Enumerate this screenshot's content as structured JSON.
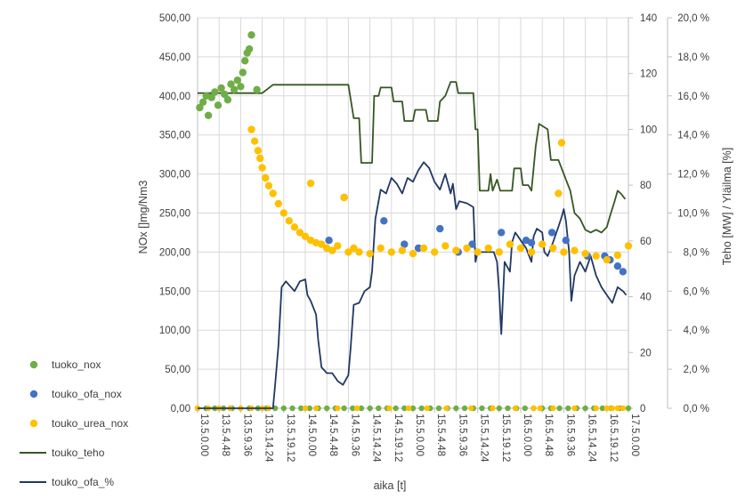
{
  "chart_data": {
    "type": "line",
    "xlabel": "aika [t]",
    "ylabel_left": "NOx []mg/Nm3",
    "ylabel_right": "Teho [MW] / Yläilma [%]",
    "y_left": {
      "min": 0,
      "max": 500,
      "ticks": [
        "0,00",
        "50,00",
        "100,00",
        "150,00",
        "200,00",
        "250,00",
        "300,00",
        "350,00",
        "400,00",
        "450,00",
        "500,00"
      ]
    },
    "y_right1": {
      "min": 0,
      "max": 140,
      "ticks": [
        "0",
        "20",
        "40",
        "60",
        "80",
        "100",
        "120",
        "140"
      ]
    },
    "y_right2": {
      "min": 0,
      "max": 20,
      "ticks": [
        "0,0 %",
        "2,0 %",
        "4,0 %",
        "6,0 %",
        "8,0 %",
        "10,0 %",
        "12,0 %",
        "14,0 %",
        "16,0 %",
        "18,0 %",
        "20,0 %"
      ]
    },
    "x_range_hours": [
      13.5,
      17.5
    ],
    "x_tick_labels": [
      "13.5.0.00",
      "13.5.4.48",
      "13.5.9.36",
      "13.5.14.24",
      "13.5.19.12",
      "14.5.0.00",
      "14.5.4.48",
      "14.5.9.36",
      "14.5.14.24",
      "14.5.19.12",
      "15.5.0.00",
      "15.5.4.48",
      "15.5.9.36",
      "15.5.14.24",
      "15.5.19.12",
      "16.5.0.00",
      "16.5.4.48",
      "16.5.9.36",
      "16.5.14.24",
      "16.5.19.12",
      "17.5.0.00"
    ],
    "grid": true,
    "legend_position": "left",
    "series": [
      {
        "name": "tuoko_nox",
        "type": "scatter",
        "axis": "left",
        "color": "#70ad47",
        "points": [
          [
            13.52,
            385
          ],
          [
            13.55,
            392
          ],
          [
            13.58,
            400
          ],
          [
            13.6,
            375
          ],
          [
            13.63,
            398
          ],
          [
            13.66,
            405
          ],
          [
            13.69,
            388
          ],
          [
            13.72,
            410
          ],
          [
            13.75,
            402
          ],
          [
            13.78,
            395
          ],
          [
            13.81,
            415
          ],
          [
            13.84,
            408
          ],
          [
            13.87,
            420
          ],
          [
            13.9,
            412
          ],
          [
            13.92,
            430
          ],
          [
            13.94,
            445
          ],
          [
            13.96,
            455
          ],
          [
            13.98,
            460
          ],
          [
            14.0,
            478
          ],
          [
            14.05,
            408
          ]
        ]
      },
      {
        "name": "touko_ofa_nox",
        "type": "scatter",
        "axis": "left",
        "color": "#4472c4",
        "points": [
          [
            14.72,
            215
          ],
          [
            14.86,
            270
          ],
          [
            15.23,
            240
          ],
          [
            15.42,
            210
          ],
          [
            15.55,
            205
          ],
          [
            15.75,
            230
          ],
          [
            15.92,
            200
          ],
          [
            16.05,
            210
          ],
          [
            16.32,
            225
          ],
          [
            16.55,
            215
          ],
          [
            16.6,
            212
          ],
          [
            16.79,
            225
          ],
          [
            16.92,
            215
          ],
          [
            17.12,
            195
          ],
          [
            17.28,
            195
          ],
          [
            17.33,
            190
          ],
          [
            17.4,
            182
          ],
          [
            17.45,
            175
          ]
        ]
      },
      {
        "name": "touko_urea_nox",
        "type": "scatter",
        "axis": "left",
        "color": "#ffc000",
        "points": [
          [
            14.0,
            357
          ],
          [
            14.03,
            342
          ],
          [
            14.06,
            330
          ],
          [
            14.08,
            320
          ],
          [
            14.1,
            308
          ],
          [
            14.13,
            295
          ],
          [
            14.16,
            285
          ],
          [
            14.2,
            275
          ],
          [
            14.25,
            262
          ],
          [
            14.3,
            250
          ],
          [
            14.35,
            240
          ],
          [
            14.4,
            232
          ],
          [
            14.45,
            225
          ],
          [
            14.5,
            220
          ],
          [
            14.55,
            215
          ],
          [
            14.6,
            212
          ],
          [
            14.65,
            210
          ],
          [
            14.7,
            205
          ],
          [
            14.75,
            202
          ],
          [
            14.8,
            208
          ],
          [
            14.86,
            270
          ],
          [
            14.9,
            200
          ],
          [
            14.95,
            205
          ],
          [
            15.0,
            200
          ],
          [
            15.1,
            198
          ],
          [
            15.2,
            205
          ],
          [
            15.3,
            200
          ],
          [
            15.4,
            202
          ],
          [
            15.5,
            198
          ],
          [
            15.6,
            205
          ],
          [
            15.7,
            200
          ],
          [
            15.8,
            208
          ],
          [
            15.9,
            202
          ],
          [
            16.0,
            205
          ],
          [
            16.1,
            200
          ],
          [
            16.2,
            205
          ],
          [
            16.3,
            200
          ],
          [
            16.4,
            210
          ],
          [
            16.5,
            205
          ],
          [
            16.6,
            200
          ],
          [
            16.7,
            210
          ],
          [
            16.8,
            205
          ],
          [
            16.9,
            200
          ],
          [
            17.0,
            202
          ],
          [
            17.1,
            198
          ],
          [
            17.2,
            195
          ],
          [
            17.3,
            190
          ],
          [
            17.4,
            196
          ],
          [
            17.5,
            208
          ],
          [
            14.55,
            288
          ],
          [
            16.88,
            340
          ],
          [
            16.85,
            275
          ]
        ]
      },
      {
        "name": "touko_teho",
        "type": "line",
        "axis": "right1",
        "color": "#375623",
        "points": [
          [
            13.5,
            113
          ],
          [
            14.1,
            113
          ],
          [
            14.2,
            116
          ],
          [
            14.9,
            116
          ],
          [
            14.95,
            104
          ],
          [
            15.0,
            104
          ],
          [
            15.02,
            88
          ],
          [
            15.12,
            88
          ],
          [
            15.14,
            112
          ],
          [
            15.18,
            112
          ],
          [
            15.2,
            115
          ],
          [
            15.3,
            115
          ],
          [
            15.32,
            110
          ],
          [
            15.4,
            110
          ],
          [
            15.42,
            103
          ],
          [
            15.5,
            103
          ],
          [
            15.52,
            107
          ],
          [
            15.62,
            107
          ],
          [
            15.64,
            103
          ],
          [
            15.73,
            103
          ],
          [
            15.75,
            110
          ],
          [
            15.8,
            112
          ],
          [
            15.85,
            117
          ],
          [
            15.9,
            117
          ],
          [
            15.92,
            113
          ],
          [
            16.06,
            113
          ],
          [
            16.08,
            100
          ],
          [
            16.1,
            100
          ],
          [
            16.12,
            78
          ],
          [
            16.2,
            78
          ],
          [
            16.22,
            84
          ],
          [
            16.24,
            78
          ],
          [
            16.28,
            82
          ],
          [
            16.31,
            78
          ],
          [
            16.35,
            78
          ],
          [
            16.42,
            78
          ],
          [
            16.44,
            86
          ],
          [
            16.5,
            86
          ],
          [
            16.52,
            80
          ],
          [
            16.57,
            80
          ],
          [
            16.6,
            78
          ],
          [
            16.64,
            94
          ],
          [
            16.67,
            102
          ],
          [
            16.75,
            100
          ],
          [
            16.78,
            89
          ],
          [
            16.85,
            89
          ],
          [
            16.9,
            84
          ],
          [
            16.96,
            78
          ],
          [
            17.0,
            70
          ],
          [
            17.05,
            68
          ],
          [
            17.1,
            64
          ],
          [
            17.15,
            63
          ],
          [
            17.2,
            64
          ],
          [
            17.25,
            63
          ],
          [
            17.3,
            65
          ],
          [
            17.33,
            69
          ],
          [
            17.37,
            74
          ],
          [
            17.4,
            78
          ],
          [
            17.43,
            77
          ],
          [
            17.47,
            75
          ]
        ]
      },
      {
        "name": "touko_ofa_%",
        "type": "line",
        "axis": "right2",
        "color": "#203864",
        "points": [
          [
            13.5,
            0.0
          ],
          [
            14.15,
            0.0
          ],
          [
            14.2,
            0.0
          ],
          [
            14.22,
            1.2
          ],
          [
            14.25,
            3.2
          ],
          [
            14.28,
            6.2
          ],
          [
            14.32,
            6.5
          ],
          [
            14.4,
            6.0
          ],
          [
            14.45,
            6.5
          ],
          [
            14.5,
            6.6
          ],
          [
            14.52,
            5.8
          ],
          [
            14.55,
            5.5
          ],
          [
            14.6,
            4.8
          ],
          [
            14.62,
            3.5
          ],
          [
            14.65,
            2.1
          ],
          [
            14.7,
            1.8
          ],
          [
            14.75,
            1.8
          ],
          [
            14.8,
            1.4
          ],
          [
            14.85,
            1.2
          ],
          [
            14.9,
            1.7
          ],
          [
            14.92,
            3.0
          ],
          [
            14.95,
            5.3
          ],
          [
            15.0,
            5.4
          ],
          [
            15.05,
            6.0
          ],
          [
            15.1,
            6.2
          ],
          [
            15.12,
            7.0
          ],
          [
            15.15,
            9.7
          ],
          [
            15.2,
            11.2
          ],
          [
            15.25,
            11.0
          ],
          [
            15.3,
            11.8
          ],
          [
            15.35,
            11.5
          ],
          [
            15.4,
            11.0
          ],
          [
            15.45,
            11.8
          ],
          [
            15.5,
            11.6
          ],
          [
            15.55,
            12.2
          ],
          [
            15.6,
            12.6
          ],
          [
            15.65,
            12.3
          ],
          [
            15.7,
            11.6
          ],
          [
            15.75,
            11.2
          ],
          [
            15.8,
            12.0
          ],
          [
            15.85,
            11.0
          ],
          [
            15.87,
            11.5
          ],
          [
            15.9,
            10.2
          ],
          [
            15.93,
            10.6
          ],
          [
            16.0,
            10.5
          ],
          [
            16.06,
            10.3
          ],
          [
            16.08,
            7.5
          ],
          [
            16.1,
            8.0
          ],
          [
            16.14,
            8.0
          ],
          [
            16.2,
            8.0
          ],
          [
            16.25,
            8.0
          ],
          [
            16.28,
            7.5
          ],
          [
            16.3,
            6.0
          ],
          [
            16.32,
            3.8
          ],
          [
            16.35,
            7.5
          ],
          [
            16.4,
            7.0
          ],
          [
            16.42,
            8.5
          ],
          [
            16.45,
            9.0
          ],
          [
            16.5,
            8.6
          ],
          [
            16.55,
            8.2
          ],
          [
            16.6,
            7.5
          ],
          [
            16.62,
            8.8
          ],
          [
            16.65,
            9.2
          ],
          [
            16.7,
            9.0
          ],
          [
            16.72,
            8.0
          ],
          [
            16.75,
            7.8
          ],
          [
            16.8,
            8.5
          ],
          [
            16.85,
            9.3
          ],
          [
            16.88,
            9.8
          ],
          [
            16.9,
            10.2
          ],
          [
            16.92,
            9.6
          ],
          [
            16.95,
            8.0
          ],
          [
            16.97,
            5.5
          ],
          [
            17.0,
            6.8
          ],
          [
            17.05,
            7.5
          ],
          [
            17.1,
            7.0
          ],
          [
            17.15,
            7.8
          ],
          [
            17.2,
            6.8
          ],
          [
            17.25,
            6.2
          ],
          [
            17.3,
            5.8
          ],
          [
            17.35,
            5.4
          ],
          [
            17.4,
            6.2
          ],
          [
            17.45,
            6.0
          ],
          [
            17.48,
            5.8
          ]
        ]
      }
    ]
  }
}
